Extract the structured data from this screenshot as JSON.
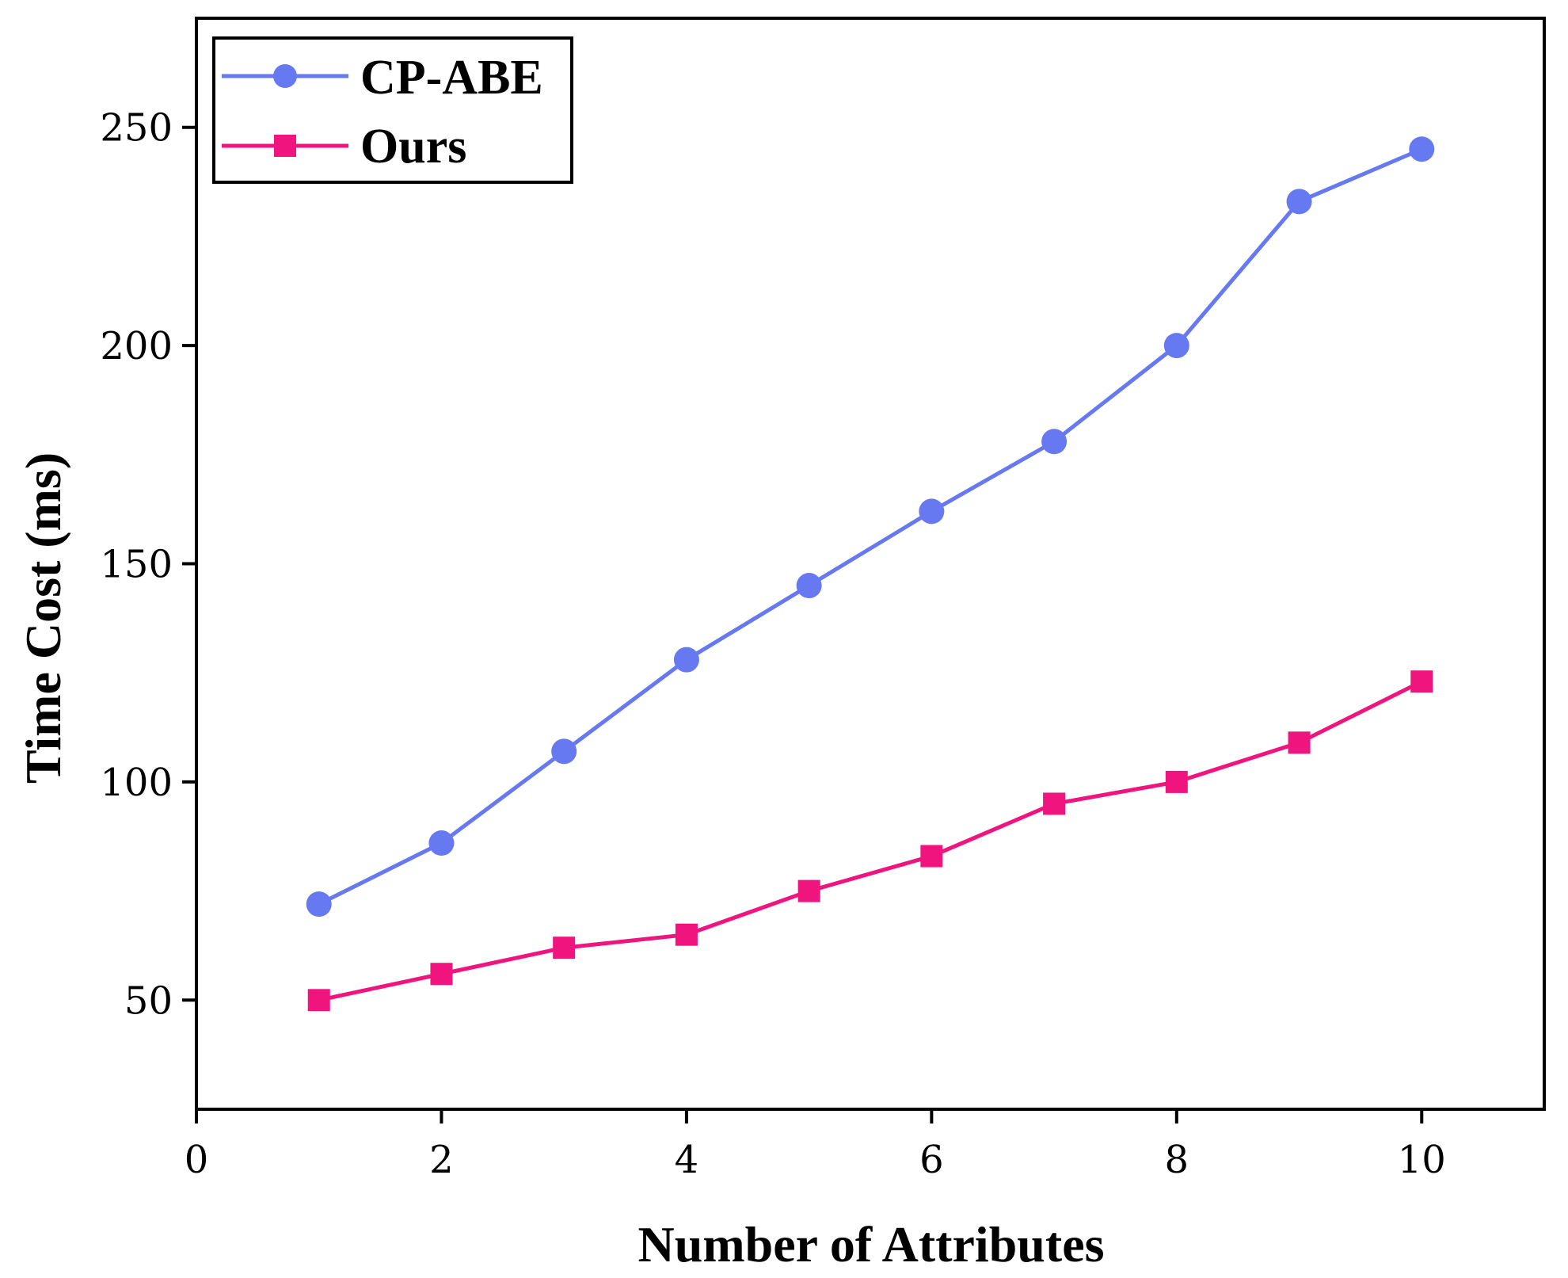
{
  "chart_data": {
    "type": "line",
    "title": "",
    "xlabel": "Number of Attributes",
    "ylabel": "Time Cost (ms)",
    "xlim": [
      0,
      11
    ],
    "ylim": [
      25,
      275
    ],
    "x_ticks": [
      0,
      2,
      4,
      6,
      8,
      10
    ],
    "x_tick_labels": [
      "0",
      "2",
      "4",
      "6",
      "8",
      "10"
    ],
    "y_ticks": [
      50,
      100,
      150,
      200,
      250
    ],
    "y_tick_labels": [
      "50",
      "100",
      "150",
      "200",
      "250"
    ],
    "grid": false,
    "legend_position": "top-left",
    "x": [
      1,
      2,
      3,
      4,
      5,
      6,
      7,
      8,
      9,
      10
    ],
    "series": [
      {
        "name": "CP-ABE",
        "marker": "circle",
        "color": "#6679f0",
        "values": [
          72,
          86,
          107,
          128,
          145,
          162,
          178,
          200,
          233,
          245
        ]
      },
      {
        "name": "Ours",
        "marker": "square",
        "color": "#f0147f",
        "values": [
          50,
          56,
          62,
          65,
          75,
          83,
          95,
          100,
          109,
          123
        ]
      }
    ]
  }
}
